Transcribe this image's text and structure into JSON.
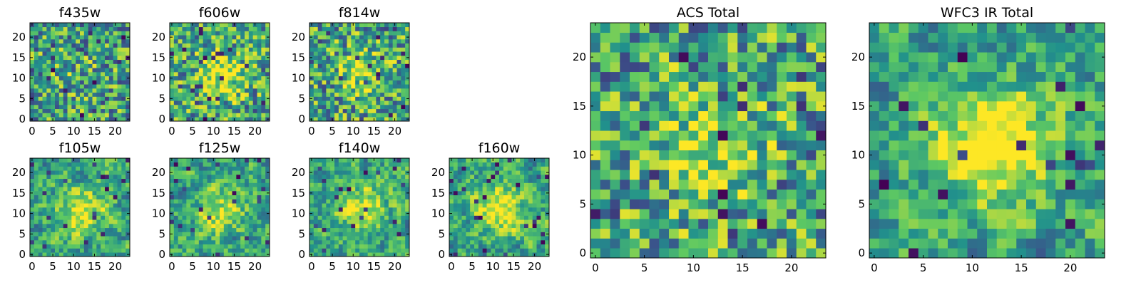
{
  "chart_data": [
    {
      "type": "heatmap",
      "title": "f435w",
      "grid_size": 24,
      "xticks": [
        "0",
        "5",
        "10",
        "15",
        "20"
      ],
      "yticks": [
        "0",
        "5",
        "10",
        "15",
        "20"
      ],
      "pattern": "noise",
      "blob_strength": 0.05,
      "seed": 11
    },
    {
      "type": "heatmap",
      "title": "f606w",
      "grid_size": 24,
      "xticks": [
        "0",
        "5",
        "10",
        "15",
        "20"
      ],
      "yticks": [
        "0",
        "5",
        "10",
        "15",
        "20"
      ],
      "pattern": "noise",
      "blob_strength": 0.35,
      "seed": 23
    },
    {
      "type": "heatmap",
      "title": "f814w",
      "grid_size": 24,
      "xticks": [
        "0",
        "5",
        "10",
        "15",
        "20"
      ],
      "yticks": [
        "0",
        "5",
        "10",
        "15",
        "20"
      ],
      "pattern": "noise",
      "blob_strength": 0.3,
      "seed": 37
    },
    {
      "type": "heatmap",
      "title": "f105w",
      "grid_size": 24,
      "xticks": [
        "0",
        "5",
        "10",
        "15",
        "20"
      ],
      "yticks": [
        "0",
        "5",
        "10",
        "15",
        "20"
      ],
      "pattern": "smooth",
      "blob_strength": 0.4,
      "seed": 41
    },
    {
      "type": "heatmap",
      "title": "f125w",
      "grid_size": 24,
      "xticks": [
        "0",
        "5",
        "10",
        "15",
        "20"
      ],
      "yticks": [
        "0",
        "5",
        "10",
        "15",
        "20"
      ],
      "pattern": "smooth",
      "blob_strength": 0.3,
      "seed": 53
    },
    {
      "type": "heatmap",
      "title": "f140w",
      "grid_size": 24,
      "xticks": [
        "0",
        "5",
        "10",
        "15",
        "20"
      ],
      "yticks": [
        "0",
        "5",
        "10",
        "15",
        "20"
      ],
      "pattern": "smooth",
      "blob_strength": 0.4,
      "seed": 67
    },
    {
      "type": "heatmap",
      "title": "f160w",
      "grid_size": 24,
      "xticks": [
        "0",
        "5",
        "10",
        "15",
        "20"
      ],
      "yticks": [
        "0",
        "5",
        "10",
        "15",
        "20"
      ],
      "pattern": "smooth",
      "blob_strength": 0.45,
      "seed": 79
    },
    {
      "type": "heatmap",
      "title": "ACS Total",
      "grid_size": 24,
      "xticks": [
        "0",
        "5",
        "10",
        "15",
        "20"
      ],
      "yticks": [
        "0",
        "5",
        "10",
        "15",
        "20"
      ],
      "pattern": "noise",
      "blob_strength": 0.35,
      "seed": 83
    },
    {
      "type": "heatmap",
      "title": "WFC3 IR Total",
      "grid_size": 24,
      "xticks": [
        "0",
        "5",
        "10",
        "15",
        "20"
      ],
      "yticks": [
        "0",
        "5",
        "10",
        "15",
        "20"
      ],
      "pattern": "smooth",
      "blob_strength": 0.55,
      "seed": 97
    }
  ],
  "colormap": [
    "#440154",
    "#3b528b",
    "#21918c",
    "#5ec962",
    "#fde725"
  ]
}
